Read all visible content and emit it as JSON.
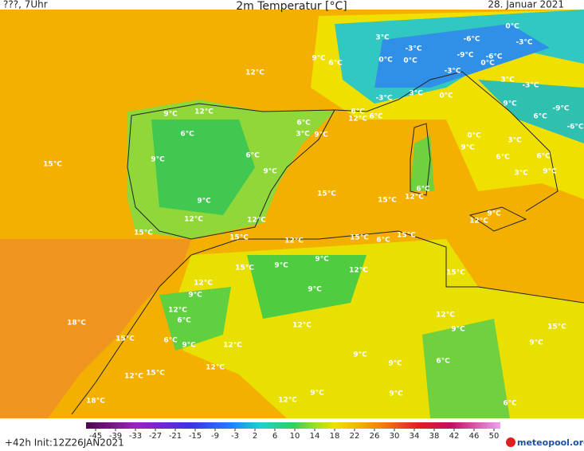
{
  "header": {
    "run": "???, 7Uhr",
    "title": "2m Temperatur [°C]",
    "date": "28. Januar 2021"
  },
  "footer": {
    "init": "+42h  Init:12Z26JAN2021",
    "logo": "meteopool.org"
  },
  "legend": {
    "ticks": [
      -45,
      -39,
      -33,
      -27,
      -21,
      -15,
      -9,
      -3,
      2,
      6,
      10,
      14,
      18,
      22,
      26,
      30,
      34,
      38,
      42,
      46,
      50
    ]
  },
  "map_labels": [
    "3°C",
    "0°C",
    "-6°C",
    "-3°C",
    "-3°C",
    "-9°C",
    "-6°C",
    "9°C",
    "6°C",
    "0°C",
    "0°C",
    "0°C",
    "-3°C",
    "12°C",
    "3°C",
    "-3°C",
    "-3°C",
    "3°C",
    "0°C",
    "9°C",
    "-9°C",
    "12°C",
    "9°C",
    "6°C",
    "12°C",
    "6°C",
    "6°C",
    "-6°C",
    "6°C",
    "3°C",
    "9°C",
    "6°C",
    "0°C",
    "3°C",
    "9°C",
    "15°C",
    "9°C",
    "6°C",
    "6°C",
    "6°C",
    "9°C",
    "9°C",
    "3°C",
    "6°C",
    "15°C",
    "12°C",
    "15°C",
    "9°C",
    "12°C",
    "12°C",
    "9°C",
    "12°C",
    "15°C",
    "15°C",
    "12°C",
    "15°C",
    "6°C",
    "15°C",
    "15°C",
    "9°C",
    "9°C",
    "12°C",
    "15°C",
    "12°C",
    "9°C",
    "9°C",
    "12°C",
    "6°C",
    "18°C",
    "12°C",
    "12°C",
    "9°C",
    "15°C",
    "15°C",
    "6°C",
    "9°C",
    "12°C",
    "9°C",
    "9°C",
    "6°C",
    "9°C",
    "12°C",
    "15°C",
    "12°C",
    "18°C",
    "12°C",
    "9°C",
    "9°C",
    "6°C"
  ]
}
